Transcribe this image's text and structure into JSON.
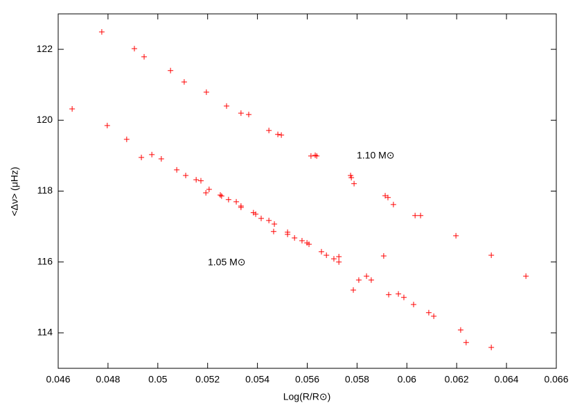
{
  "chart_data": {
    "type": "scatter",
    "xlabel": "Log(R/R⊙)",
    "ylabel": "<Δν> (μHz)",
    "annotations": [
      "1.10 M⊙",
      "1.05 M⊙"
    ],
    "color": "#ff0000",
    "xlim": [
      0.046,
      0.066
    ],
    "ylim": [
      113,
      123
    ],
    "xticks": [
      0.046,
      0.048,
      0.05,
      0.052,
      0.054,
      0.056,
      0.058,
      0.06,
      0.062,
      0.064,
      0.066
    ],
    "yticks": [
      114,
      116,
      118,
      120,
      122
    ],
    "x": [
      0.04775,
      0.04906,
      0.04945,
      0.05051,
      0.05106,
      0.05195,
      0.05276,
      0.05334,
      0.05365,
      0.05446,
      0.05482,
      0.05496,
      0.05615,
      0.05632,
      0.05638,
      0.05774,
      0.05777,
      0.05788,
      0.05913,
      0.05924,
      0.05946,
      0.06033,
      0.06055,
      0.06197,
      0.06339,
      0.06478,
      0.04656,
      0.04797,
      0.04875,
      0.04934,
      0.04976,
      0.05014,
      0.05076,
      0.05112,
      0.05154,
      0.05173,
      0.05193,
      0.05206,
      0.05251,
      0.05256,
      0.05284,
      0.05315,
      0.05334,
      0.05334,
      0.05384,
      0.05393,
      0.05415,
      0.05446,
      0.05468,
      0.05465,
      0.05521,
      0.05521,
      0.05549,
      0.05579,
      0.05599,
      0.05607,
      0.05657,
      0.05677,
      0.05707,
      0.05727,
      0.05727,
      0.05785,
      0.05807,
      0.05838,
      0.05857,
      0.05907,
      0.05927,
      0.05966,
      0.05988,
      0.06027,
      0.06088,
      0.06108,
      0.06216,
      0.06238,
      0.06339
    ],
    "values": [
      122.49,
      122.02,
      121.79,
      121.4,
      121.08,
      120.79,
      120.4,
      120.2,
      120.16,
      119.71,
      119.6,
      119.58,
      118.99,
      119.01,
      118.99,
      118.44,
      118.38,
      118.21,
      117.87,
      117.82,
      117.62,
      117.31,
      117.31,
      116.74,
      116.19,
      115.6,
      120.32,
      119.85,
      119.46,
      118.95,
      119.03,
      118.91,
      118.6,
      118.44,
      118.32,
      118.29,
      117.95,
      118.05,
      117.89,
      117.86,
      117.76,
      117.7,
      117.58,
      117.54,
      117.39,
      117.35,
      117.23,
      117.17,
      117.07,
      116.86,
      116.84,
      116.78,
      116.68,
      116.6,
      116.54,
      116.5,
      116.29,
      116.19,
      116.09,
      116.15,
      116.0,
      115.21,
      115.49,
      115.6,
      115.49,
      116.17,
      115.08,
      115.1,
      115.0,
      114.8,
      114.57,
      114.47,
      114.08,
      113.73,
      113.59
    ]
  }
}
